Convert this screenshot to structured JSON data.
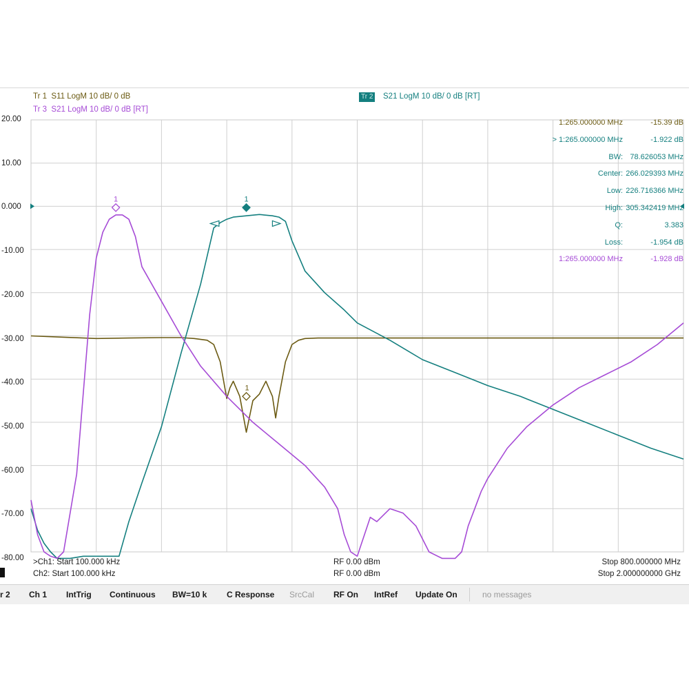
{
  "traces": {
    "tr1": {
      "name": "Tr 1",
      "desc": "S11 LogM 10 dB/ 0 dB",
      "color": "#6b5a12"
    },
    "tr2": {
      "name": "Tr 2",
      "desc": "S21 LogM 10 dB/ 0 dB [RT]",
      "color": "#147f7f"
    },
    "tr3": {
      "name": "Tr 3",
      "desc": "S21 LogM 10 dB/ 0 dB [RT]",
      "color": "#a64bd6"
    }
  },
  "y_axis": {
    "ticks": [
      "20.00",
      "10.00",
      "0.000",
      "-10.00",
      "-20.00",
      "-30.00",
      "-40.00",
      "-50.00",
      "-60.00",
      "-70.00",
      "-80.00"
    ]
  },
  "markers": [
    {
      "label": "1:265.000000 MHz",
      "value": "-15.39 dB",
      "color": "#6b5a12"
    },
    {
      "label": "> 1:265.000000 MHz",
      "value": "-1.922 dB",
      "color": "#147f7f"
    },
    {
      "label": "BW:",
      "value": "78.626053 MHz",
      "color": "#147f7f"
    },
    {
      "label": "Center:",
      "value": "266.029393 MHz",
      "color": "#147f7f"
    },
    {
      "label": "Low:",
      "value": "226.716366 MHz",
      "color": "#147f7f"
    },
    {
      "label": "High:",
      "value": "305.342419 MHz",
      "color": "#147f7f"
    },
    {
      "label": "Q:",
      "value": "3.383",
      "color": "#147f7f"
    },
    {
      "label": "Loss:",
      "value": "-1.954 dB",
      "color": "#147f7f"
    },
    {
      "label": "1:265.000000 MHz",
      "value": "-1.928 dB",
      "color": "#a64bd6"
    }
  ],
  "marker_tags": {
    "tr3": "1",
    "tr2": "1",
    "tr1": "1"
  },
  "footer": {
    "ch1_start": ">Ch1: Start 100.000 kHz",
    "ch2_start": "Ch2: Start 100.000 kHz",
    "rf1": "RF 0.00 dBm",
    "rf2": "RF 0.00 dBm",
    "ch1_stop": "Stop 800.000000 MHz",
    "ch2_stop": "Stop 2.000000000 GHz"
  },
  "status_bar": {
    "items": [
      "r 2",
      "Ch 1",
      "IntTrig",
      "Continuous",
      "BW=10 k",
      "C Response",
      "SrcCal",
      "RF On",
      "IntRef",
      "Update On",
      "no messages"
    ]
  },
  "chart_data": {
    "type": "line",
    "x_divisions": 10,
    "ylim": [
      -80,
      20
    ],
    "grid": true,
    "series": [
      {
        "name": "Tr 1 S11",
        "color": "#6b5a12",
        "x": [
          0,
          0.5,
          1,
          1.5,
          2,
          2.3,
          2.5,
          2.7,
          2.8,
          2.9,
          3.0,
          3.05,
          3.1,
          3.2,
          3.3,
          3.4,
          3.5,
          3.6,
          3.7,
          3.75,
          3.8,
          3.9,
          4.0,
          4.1,
          4.2,
          4.4,
          4.7,
          5,
          6,
          7,
          8,
          9,
          10
        ],
        "y": [
          -30,
          -30.3,
          -30.6,
          -30.5,
          -30.4,
          -30.4,
          -30.6,
          -31,
          -32,
          -36,
          -44.5,
          -42,
          -40.5,
          -44,
          -52.3,
          -45,
          -43.5,
          -40.5,
          -44,
          -49,
          -44,
          -36,
          -32,
          -31,
          -30.6,
          -30.5,
          -30.5,
          -30.5,
          -30.5,
          -30.5,
          -30.5,
          -30.5,
          -30.5
        ]
      },
      {
        "name": "Tr 2 S21",
        "color": "#147f7f",
        "x": [
          0,
          0.1,
          0.2,
          0.3,
          0.4,
          0.6,
          0.8,
          1.0,
          1.2,
          1.35,
          1.5,
          1.7,
          2.0,
          2.3,
          2.6,
          2.8,
          2.9,
          3.0,
          3.1,
          3.3,
          3.5,
          3.7,
          3.8,
          3.9,
          4.0,
          4.2,
          4.5,
          4.8,
          5.0,
          5.5,
          6.0,
          6.5,
          7.0,
          7.5,
          8.0,
          8.5,
          9.0,
          9.5,
          10.0
        ],
        "y": [
          -70,
          -75,
          -78,
          -80,
          -82,
          -84,
          -81,
          -81,
          -81,
          -81,
          -73,
          -64,
          -51,
          -34,
          -18,
          -5,
          -3.8,
          -3,
          -2.5,
          -2.2,
          -1.9,
          -2.2,
          -2.5,
          -3.5,
          -8,
          -15,
          -20,
          -24,
          -27,
          -31,
          -35.5,
          -38.5,
          -41.5,
          -44,
          -47,
          -50,
          -53,
          -56,
          -58.5
        ]
      },
      {
        "name": "Tr 3 S21",
        "color": "#a64bd6",
        "x": [
          0,
          0.1,
          0.2,
          0.3,
          0.4,
          0.5,
          0.7,
          0.9,
          1.0,
          1.1,
          1.2,
          1.3,
          1.4,
          1.5,
          1.6,
          1.7,
          2.0,
          2.3,
          2.6,
          3.0,
          3.4,
          3.8,
          4.2,
          4.5,
          4.7,
          4.8,
          4.9,
          5.0,
          5.2,
          5.3,
          5.5,
          5.7,
          5.9,
          6.1,
          6.3,
          6.5,
          6.6,
          6.7,
          6.8,
          6.9,
          7.0,
          7.3,
          7.6,
          8.0,
          8.4,
          8.8,
          9.2,
          9.6,
          10.0
        ],
        "y": [
          -68,
          -76,
          -80,
          -81,
          -82,
          -80,
          -62,
          -25,
          -12,
          -6,
          -3,
          -2,
          -2,
          -3,
          -7,
          -14,
          -22,
          -30,
          -37,
          -44,
          -50,
          -55,
          -60,
          -65,
          -70,
          -76,
          -80,
          -81,
          -72,
          -73,
          -70,
          -71,
          -74,
          -80,
          -82,
          -82,
          -80,
          -74,
          -70,
          -66,
          -63,
          -56,
          -51,
          -46,
          -42,
          -39,
          -36,
          -32,
          -27
        ]
      }
    ]
  }
}
